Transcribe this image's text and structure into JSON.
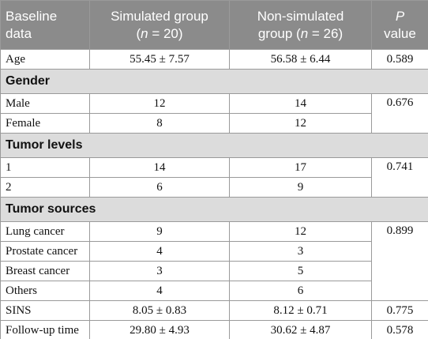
{
  "table": {
    "header": [
      [
        "Baseline",
        "data"
      ],
      [
        "Simulated group",
        "(",
        "n",
        " = 20)"
      ],
      [
        "Non-simulated",
        "group (",
        "n",
        " = 26)"
      ],
      [
        "P",
        "value"
      ]
    ],
    "rows": [
      [
        "Age",
        "55.45 ± 7.57",
        "56.58 ± 6.44",
        "0.589"
      ],
      [
        "Gender"
      ],
      [
        "Male",
        "12",
        "14",
        "0.676"
      ],
      [
        "Female",
        "8",
        "12"
      ],
      [
        "Tumor levels"
      ],
      [
        "1",
        "14",
        "17",
        "0.741"
      ],
      [
        "2",
        "6",
        "9"
      ],
      [
        "Tumor sources"
      ],
      [
        "Lung cancer",
        "9",
        "12",
        "0.899"
      ],
      [
        "Prostate cancer",
        "4",
        "3"
      ],
      [
        "Breast cancer",
        "3",
        "5"
      ],
      [
        "Others",
        "4",
        "6"
      ],
      [
        "SINS",
        "8.05 ± 0.83",
        "8.12 ± 0.71",
        "0.775"
      ],
      [
        "Follow-up time",
        "29.80 ± 4.93",
        "30.62 ± 4.87",
        "0.578"
      ]
    ]
  }
}
